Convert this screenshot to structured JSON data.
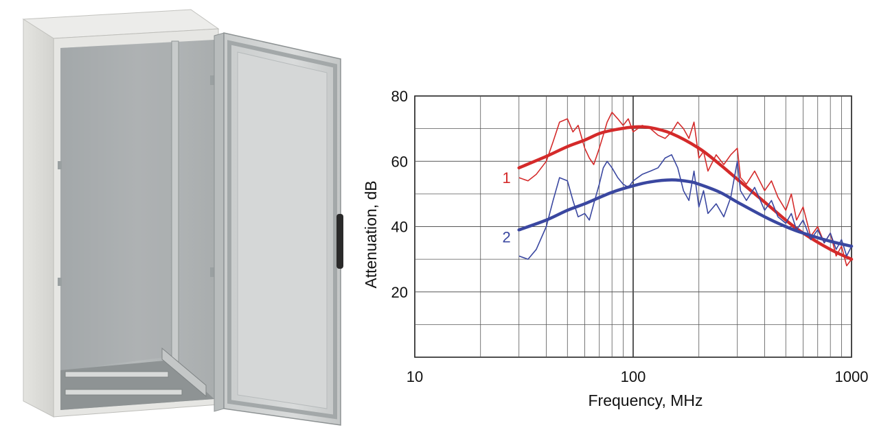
{
  "chart_data": {
    "type": "line",
    "title": "",
    "xlabel": "Frequency, MHz",
    "ylabel": "Attenuation, dB",
    "x_scale": "log",
    "xlim": [
      10,
      1000
    ],
    "ylim": [
      0,
      80
    ],
    "grid": true,
    "x_ticks": [
      10,
      100,
      1000
    ],
    "x_tick_labels": [
      "10",
      "100",
      "1000"
    ],
    "y_ticks": [
      20,
      40,
      60,
      80
    ],
    "y_tick_labels": [
      "20",
      "40",
      "60",
      "80"
    ],
    "colors": {
      "series_1": "#d42a2a",
      "series_2": "#3a47a0"
    },
    "series": [
      {
        "name": "1",
        "smooth": {
          "x": [
            30,
            40,
            50,
            60,
            70,
            80,
            100,
            120,
            150,
            200,
            250,
            300,
            400,
            500,
            600,
            800,
            1000
          ],
          "y": [
            58,
            61.5,
            64.5,
            66.5,
            68.5,
            69.5,
            70.5,
            70.3,
            68.5,
            64,
            59,
            54.5,
            47.5,
            42,
            38,
            33,
            30
          ]
        },
        "measured": {
          "x": [
            30,
            33,
            36,
            40,
            43,
            46,
            50,
            53,
            56,
            60,
            63,
            66,
            70,
            73,
            76,
            80,
            85,
            90,
            95,
            100,
            110,
            120,
            130,
            140,
            150,
            160,
            170,
            180,
            190,
            200,
            210,
            220,
            240,
            260,
            280,
            300,
            310,
            330,
            360,
            400,
            430,
            460,
            500,
            530,
            560,
            600,
            650,
            700,
            750,
            800,
            850,
            900,
            950,
            1000
          ],
          "y": [
            55,
            54,
            56,
            60,
            66,
            72,
            73,
            69,
            71,
            64,
            61,
            59,
            64,
            68,
            72,
            75,
            73,
            71,
            73,
            69,
            71,
            70,
            68,
            67,
            69,
            72,
            70,
            67,
            72,
            61,
            63,
            57,
            62,
            59,
            62,
            64,
            55,
            53,
            57,
            51,
            54,
            49,
            45,
            50,
            42,
            46,
            37,
            40,
            35,
            38,
            31,
            34,
            28,
            30
          ]
        }
      },
      {
        "name": "2",
        "smooth": {
          "x": [
            30,
            40,
            50,
            60,
            80,
            100,
            120,
            150,
            180,
            200,
            250,
            300,
            400,
            500,
            600,
            800,
            1000
          ],
          "y": [
            39,
            42,
            45,
            47,
            50.5,
            52.5,
            53.7,
            54.3,
            53.8,
            53,
            50.5,
            47.5,
            43,
            40,
            38,
            35.5,
            34
          ]
        },
        "measured": {
          "x": [
            30,
            33,
            36,
            40,
            43,
            46,
            50,
            53,
            56,
            60,
            63,
            66,
            70,
            73,
            76,
            80,
            85,
            90,
            95,
            100,
            110,
            120,
            130,
            140,
            150,
            160,
            170,
            180,
            190,
            200,
            210,
            220,
            240,
            260,
            280,
            300,
            310,
            330,
            360,
            400,
            430,
            460,
            500,
            530,
            560,
            600,
            650,
            700,
            750,
            800,
            850,
            900,
            950,
            1000
          ],
          "y": [
            31,
            30,
            33,
            40,
            48,
            55,
            54,
            48,
            43,
            44,
            42,
            47,
            53,
            58,
            60,
            58,
            55,
            53,
            52,
            54,
            56,
            57,
            58,
            61,
            62,
            58,
            51,
            48,
            57,
            46,
            51,
            44,
            47,
            43,
            49,
            60,
            51,
            48,
            52,
            45,
            48,
            43,
            41,
            44,
            39,
            42,
            36,
            39,
            35,
            38,
            33,
            36,
            31,
            34
          ]
        }
      }
    ]
  }
}
